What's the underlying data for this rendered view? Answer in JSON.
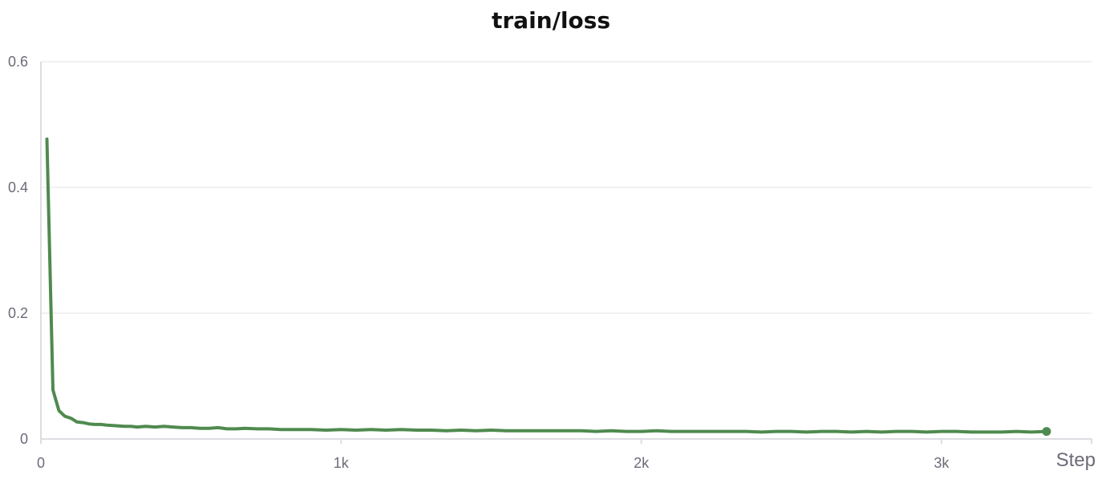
{
  "chart_data": {
    "type": "line",
    "title": "train/loss",
    "xlabel": "Step",
    "ylabel": "",
    "xlim": [
      0,
      3500
    ],
    "ylim": [
      0,
      0.6
    ],
    "x_ticks": [
      {
        "value": 0,
        "label": "0"
      },
      {
        "value": 1000,
        "label": "1k"
      },
      {
        "value": 2000,
        "label": "2k"
      },
      {
        "value": 3000,
        "label": "3k"
      }
    ],
    "y_ticks": [
      {
        "value": 0,
        "label": "0"
      },
      {
        "value": 0.2,
        "label": "0.2"
      },
      {
        "value": 0.4,
        "label": "0.4"
      },
      {
        "value": 0.6,
        "label": "0.6"
      }
    ],
    "grid": true,
    "legend": "none",
    "series": [
      {
        "color": "#4f8a4f",
        "x": [
          20,
          40,
          60,
          80,
          100,
          120,
          140,
          160,
          180,
          200,
          220,
          250,
          280,
          300,
          320,
          350,
          380,
          410,
          440,
          470,
          500,
          530,
          560,
          590,
          620,
          650,
          680,
          720,
          760,
          800,
          850,
          900,
          950,
          1000,
          1050,
          1100,
          1150,
          1200,
          1250,
          1300,
          1350,
          1400,
          1450,
          1500,
          1550,
          1600,
          1650,
          1700,
          1750,
          1800,
          1850,
          1900,
          1950,
          2000,
          2050,
          2100,
          2150,
          2200,
          2250,
          2300,
          2350,
          2400,
          2450,
          2500,
          2550,
          2600,
          2650,
          2700,
          2750,
          2800,
          2850,
          2900,
          2950,
          3000,
          3050,
          3100,
          3150,
          3200,
          3250,
          3300,
          3350
        ],
        "values": [
          0.477,
          0.078,
          0.045,
          0.036,
          0.033,
          0.027,
          0.026,
          0.024,
          0.023,
          0.023,
          0.022,
          0.021,
          0.02,
          0.02,
          0.019,
          0.02,
          0.019,
          0.02,
          0.019,
          0.018,
          0.018,
          0.017,
          0.017,
          0.018,
          0.016,
          0.016,
          0.017,
          0.016,
          0.016,
          0.015,
          0.015,
          0.015,
          0.014,
          0.015,
          0.014,
          0.015,
          0.014,
          0.015,
          0.014,
          0.014,
          0.013,
          0.014,
          0.013,
          0.014,
          0.013,
          0.013,
          0.013,
          0.013,
          0.013,
          0.013,
          0.012,
          0.013,
          0.012,
          0.012,
          0.013,
          0.012,
          0.012,
          0.012,
          0.012,
          0.012,
          0.012,
          0.011,
          0.012,
          0.012,
          0.011,
          0.012,
          0.012,
          0.011,
          0.012,
          0.011,
          0.012,
          0.012,
          0.011,
          0.012,
          0.012,
          0.011,
          0.011,
          0.011,
          0.012,
          0.011,
          0.012
        ]
      }
    ]
  }
}
